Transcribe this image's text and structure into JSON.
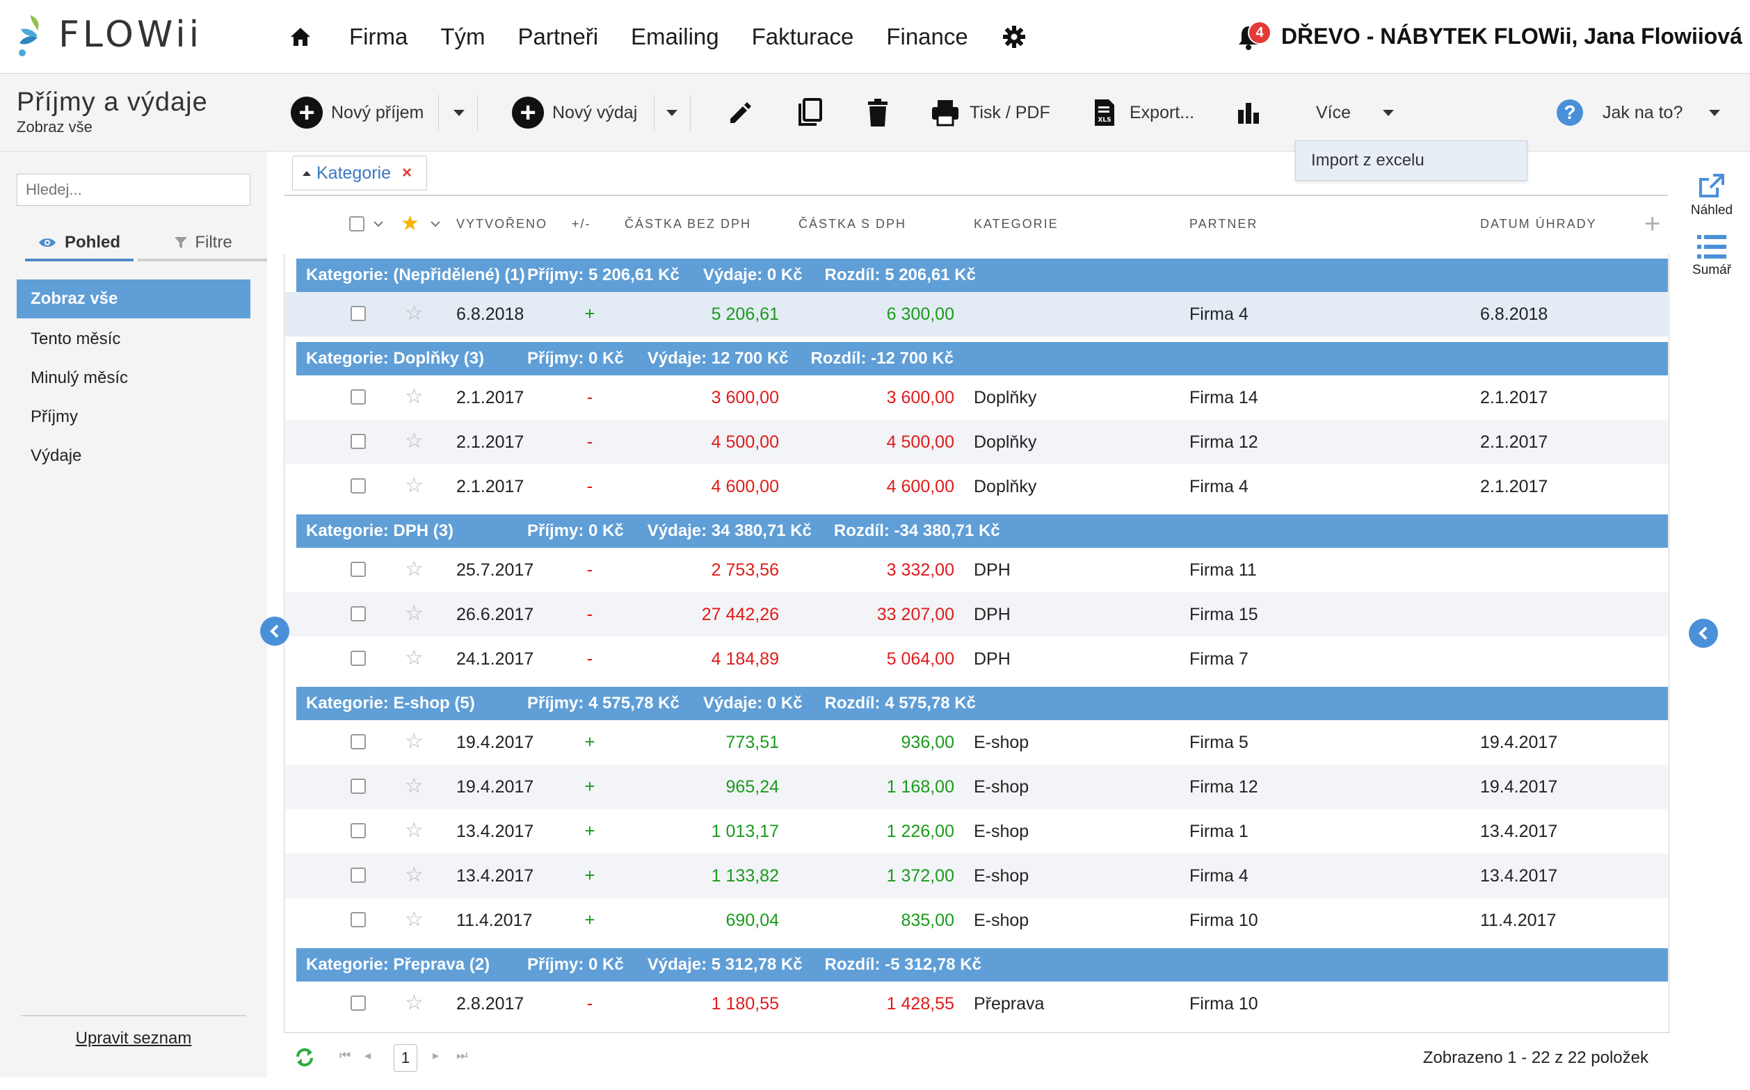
{
  "app": {
    "logo_text": "FLOWii"
  },
  "nav": {
    "items": [
      "Firma",
      "Tým",
      "Partneři",
      "Emailing",
      "Fakturace",
      "Finance"
    ],
    "notification_count": "4",
    "company_user": "DŘEVO - NÁBYTEK FLOWii, Jana Flowiiová"
  },
  "page": {
    "title": "Příjmy a výdaje",
    "subtitle": "Zobraz vše"
  },
  "toolbar": {
    "new_income": "Nový příjem",
    "new_expense": "Nový výdaj",
    "print": "Tisk / PDF",
    "export": "Export...",
    "more": "Více",
    "help": "Jak na to?",
    "more_menu": [
      "Import z excelu"
    ]
  },
  "sidebar": {
    "search_placeholder": "Hledej...",
    "tabs": [
      "Pohled",
      "Filtre"
    ],
    "items": [
      "Zobraz vše",
      "Tento měsíc",
      "Minulý měsíc",
      "Příjmy",
      "Výdaje"
    ],
    "edit_list": "Upravit seznam"
  },
  "grid": {
    "group_chip": "Kategorie",
    "columns": [
      "VYTVOŘENO",
      "+/-",
      "ČÁSTKA BEZ DPH",
      "ČÁSTKA S DPH",
      "KATEGORIE",
      "PARTNER",
      "DATUM ÚHRADY"
    ],
    "groups": [
      {
        "title": "Kategorie: (Nepřidělené) (1)",
        "income": "Příjmy: 5 206,61 Kč",
        "expense": "Výdaje: 0 Kč",
        "diff": "Rozdíl: 5 206,61 Kč",
        "rows": [
          {
            "date": "6.8.2018",
            "sign": "+",
            "net": "5 206,61",
            "gross": "6 300,00",
            "category": "",
            "partner": "Firma 4",
            "paid": "6.8.2018"
          }
        ]
      },
      {
        "title": "Kategorie: Doplňky (3)",
        "income": "Příjmy: 0 Kč",
        "expense": "Výdaje: 12 700 Kč",
        "diff": "Rozdíl: -12 700 Kč",
        "rows": [
          {
            "date": "2.1.2017",
            "sign": "-",
            "net": "3 600,00",
            "gross": "3 600,00",
            "category": "Doplňky",
            "partner": "Firma 14",
            "paid": "2.1.2017"
          },
          {
            "date": "2.1.2017",
            "sign": "-",
            "net": "4 500,00",
            "gross": "4 500,00",
            "category": "Doplňky",
            "partner": "Firma 12",
            "paid": "2.1.2017"
          },
          {
            "date": "2.1.2017",
            "sign": "-",
            "net": "4 600,00",
            "gross": "4 600,00",
            "category": "Doplňky",
            "partner": "Firma 4",
            "paid": "2.1.2017"
          }
        ]
      },
      {
        "title": "Kategorie: DPH (3)",
        "income": "Příjmy: 0 Kč",
        "expense": "Výdaje: 34 380,71 Kč",
        "diff": "Rozdíl: -34 380,71 Kč",
        "rows": [
          {
            "date": "25.7.2017",
            "sign": "-",
            "net": "2 753,56",
            "gross": "3 332,00",
            "category": "DPH",
            "partner": "Firma 11",
            "paid": ""
          },
          {
            "date": "26.6.2017",
            "sign": "-",
            "net": "27 442,26",
            "gross": "33 207,00",
            "category": "DPH",
            "partner": "Firma 15",
            "paid": ""
          },
          {
            "date": "24.1.2017",
            "sign": "-",
            "net": "4 184,89",
            "gross": "5 064,00",
            "category": "DPH",
            "partner": "Firma 7",
            "paid": ""
          }
        ]
      },
      {
        "title": "Kategorie: E-shop (5)",
        "income": "Příjmy: 4 575,78 Kč",
        "expense": "Výdaje: 0 Kč",
        "diff": "Rozdíl: 4 575,78 Kč",
        "rows": [
          {
            "date": "19.4.2017",
            "sign": "+",
            "net": "773,51",
            "gross": "936,00",
            "category": "E-shop",
            "partner": "Firma 5",
            "paid": "19.4.2017"
          },
          {
            "date": "19.4.2017",
            "sign": "+",
            "net": "965,24",
            "gross": "1 168,00",
            "category": "E-shop",
            "partner": "Firma 12",
            "paid": "19.4.2017"
          },
          {
            "date": "13.4.2017",
            "sign": "+",
            "net": "1 013,17",
            "gross": "1 226,00",
            "category": "E-shop",
            "partner": "Firma 1",
            "paid": "13.4.2017"
          },
          {
            "date": "13.4.2017",
            "sign": "+",
            "net": "1 133,82",
            "gross": "1 372,00",
            "category": "E-shop",
            "partner": "Firma 4",
            "paid": "13.4.2017"
          },
          {
            "date": "11.4.2017",
            "sign": "+",
            "net": "690,04",
            "gross": "835,00",
            "category": "E-shop",
            "partner": "Firma 10",
            "paid": "11.4.2017"
          }
        ]
      },
      {
        "title": "Kategorie: Přeprava (2)",
        "income": "Příjmy: 0 Kč",
        "expense": "Výdaje: 5 312,78 Kč",
        "diff": "Rozdíl: -5 312,78 Kč",
        "rows": [
          {
            "date": "2.8.2017",
            "sign": "-",
            "net": "1 180,55",
            "gross": "1 428,55",
            "category": "Přeprava",
            "partner": "Firma 10",
            "paid": ""
          }
        ]
      }
    ]
  },
  "right_panel": {
    "preview": "Náhled",
    "summary": "Sumář"
  },
  "pager": {
    "page": "1",
    "info": "Zobrazeno 1 - 22 z 22 položek"
  },
  "colors": {
    "accent": "#5f9ed6",
    "positive": "#1a9a1a",
    "negative": "#e21a1a"
  }
}
